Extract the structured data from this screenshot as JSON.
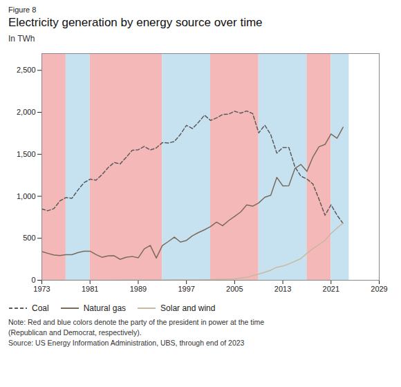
{
  "chart_data": {
    "type": "line",
    "title": "Electricity generation by energy source over time",
    "annotations": [
      "Figure 8"
    ],
    "ylabel": "In TWh",
    "caption": "Note: Red and blue colors denote the party of the president in power at the time\n(Republican and Democrat, respectively).\nSource: US Energy Information Administration, UBS, through end of 2023",
    "xlim": [
      1973,
      2029
    ],
    "xticks": [
      1973,
      1981,
      1989,
      1997,
      2005,
      2013,
      2021,
      2029
    ],
    "ylim": [
      0,
      2700
    ],
    "yticks": [
      0,
      500,
      {
        "value": 1000,
        "label": "1,000"
      },
      {
        "value": 1500,
        "label": "1,500"
      },
      {
        "value": 2000,
        "label": "2,000"
      },
      {
        "value": 2500,
        "label": "2,500"
      }
    ],
    "grid": false,
    "legend": "bottom",
    "bands": [
      {
        "start": 1973,
        "end": 1977,
        "color": "#f4b8b8"
      },
      {
        "start": 1977,
        "end": 1981,
        "color": "#c6e2f0"
      },
      {
        "start": 1981,
        "end": 1993,
        "color": "#f4b8b8"
      },
      {
        "start": 1993,
        "end": 2001,
        "color": "#c6e2f0"
      },
      {
        "start": 2001,
        "end": 2009,
        "color": "#f4b8b8"
      },
      {
        "start": 2009,
        "end": 2017,
        "color": "#c6e2f0"
      },
      {
        "start": 2017,
        "end": 2021,
        "color": "#f4b8b8"
      },
      {
        "start": 2021,
        "end": 2024,
        "color": "#c6e2f0"
      }
    ],
    "x": [
      1973,
      1974,
      1975,
      1976,
      1977,
      1978,
      1979,
      1980,
      1981,
      1982,
      1983,
      1984,
      1985,
      1986,
      1987,
      1988,
      1989,
      1990,
      1991,
      1992,
      1993,
      1994,
      1995,
      1996,
      1997,
      1998,
      1999,
      2000,
      2001,
      2002,
      2003,
      2004,
      2005,
      2006,
      2007,
      2008,
      2009,
      2010,
      2011,
      2012,
      2013,
      2014,
      2015,
      2016,
      2017,
      2018,
      2019,
      2020,
      2021,
      2022,
      2023
    ],
    "series": [
      {
        "name": "Coal",
        "color": "#5a5a5a",
        "line_style": "dashed",
        "values": [
          848,
          828,
          853,
          945,
          985,
          976,
          1075,
          1162,
          1203,
          1192,
          1259,
          1342,
          1402,
          1386,
          1464,
          1547,
          1554,
          1594,
          1551,
          1576,
          1639,
          1635,
          1652,
          1737,
          1845,
          1807,
          1881,
          1966,
          1904,
          1933,
          1974,
          1978,
          2013,
          1990,
          2016,
          1985,
          1755,
          1847,
          1733,
          1514,
          1581,
          1581,
          1352,
          1239,
          1206,
          1146,
          966,
          774,
          899,
          775,
          676
        ]
      },
      {
        "name": "Natural gas",
        "color": "#7a6a5a",
        "line_style": "solid",
        "values": [
          341,
          320,
          300,
          295,
          305,
          305,
          329,
          346,
          346,
          306,
          273,
          290,
          292,
          249,
          273,
          283,
          267,
          373,
          415,
          264,
          412,
          461,
          514,
          455,
          474,
          530,
          568,
          601,
          639,
          692,
          649,
          710,
          760,
          813,
          897,
          882,
          921,
          988,
          1013,
          1225,
          1124,
          1126,
          1330,
          1379,
          1296,
          1469,
          1590,
          1617,
          1742,
          1691,
          1823
        ]
      },
      {
        "name": "Solar and wind",
        "color": "#c8b8a0",
        "line_style": "solid",
        "values": [
          0,
          0,
          0,
          0,
          0,
          0,
          0,
          0,
          0,
          1,
          1,
          1,
          1,
          2,
          2,
          2,
          2,
          3,
          3,
          3,
          3,
          4,
          4,
          4,
          4,
          5,
          5,
          6,
          7,
          10,
          11,
          14,
          17,
          26,
          34,
          55,
          74,
          95,
          120,
          155,
          168,
          194,
          225,
          257,
          320,
          375,
          425,
          475,
          558,
          622,
          680
        ]
      }
    ]
  }
}
